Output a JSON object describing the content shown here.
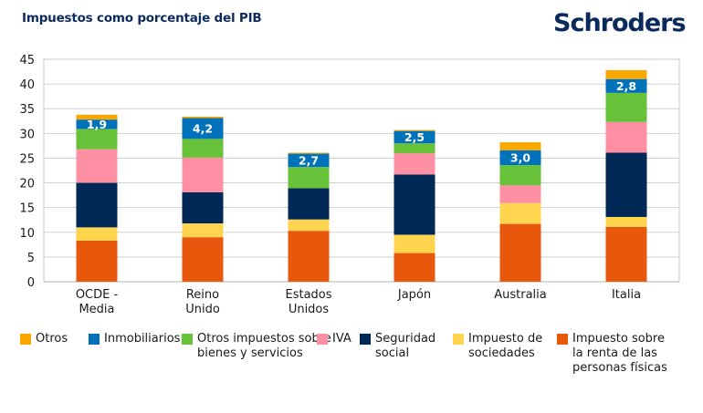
{
  "header": {
    "title": "Impuestos como porcentaje del PIB",
    "brand": "Schroders"
  },
  "chart_data": {
    "type": "bar",
    "stacked": true,
    "title": "Impuestos como porcentaje del PIB",
    "xlabel": "",
    "ylabel": "",
    "ylim": [
      0,
      45
    ],
    "yticks": [
      0,
      5,
      10,
      15,
      20,
      25,
      30,
      35,
      40,
      45
    ],
    "grid": true,
    "legend_position": "bottom",
    "categories": [
      "OCDE -\nMedia",
      "Reino\nUnido",
      "Estados\nUnidos",
      "Japón",
      "Australia",
      "Italia"
    ],
    "series": [
      {
        "name": "Impuesto sobre\nla renta de las\npersonas físicas",
        "key": "personas",
        "color": "#e8580c",
        "values": [
          8.3,
          9.0,
          10.3,
          5.8,
          11.7,
          11.1
        ]
      },
      {
        "name": "Impuesto de\nsociedades",
        "key": "sociedades",
        "color": "#ffd54f",
        "values": [
          2.7,
          2.8,
          2.3,
          3.7,
          4.2,
          2.0
        ]
      },
      {
        "name": "Seguridad\nsocial",
        "key": "seguridad",
        "color": "#002856",
        "values": [
          9.0,
          6.3,
          6.3,
          12.2,
          0.0,
          13.0
        ]
      },
      {
        "name": "IVA",
        "key": "iva",
        "color": "#ff8fa3",
        "values": [
          6.8,
          7.0,
          0.0,
          4.3,
          3.6,
          6.2
        ]
      },
      {
        "name": "Otros impuestos sobre\nbienes y servicios",
        "key": "otros_bienes",
        "color": "#67c23a",
        "values": [
          4.1,
          3.8,
          4.3,
          2.0,
          4.1,
          5.9
        ]
      },
      {
        "name": "Inmobiliarios",
        "key": "inmobiliarios",
        "color": "#0072bc",
        "values": [
          1.9,
          4.2,
          2.7,
          2.5,
          3.0,
          2.8
        ],
        "data_labels": [
          "1,9",
          "4,2",
          "2,7",
          "2,5",
          "3,0",
          "2,8"
        ]
      },
      {
        "name": "Otros",
        "key": "otros",
        "color": "#f9a800",
        "values": [
          1.0,
          0.3,
          0.2,
          0.2,
          1.6,
          1.8
        ]
      }
    ],
    "legend_order": [
      "Otros",
      "Inmobiliarios",
      "Otros impuestos sobre\nbienes y servicios",
      "IVA",
      "Seguridad\nsocial",
      "Impuesto de\nsociedades",
      "Impuesto sobre\nla renta de las\npersonas físicas"
    ]
  }
}
